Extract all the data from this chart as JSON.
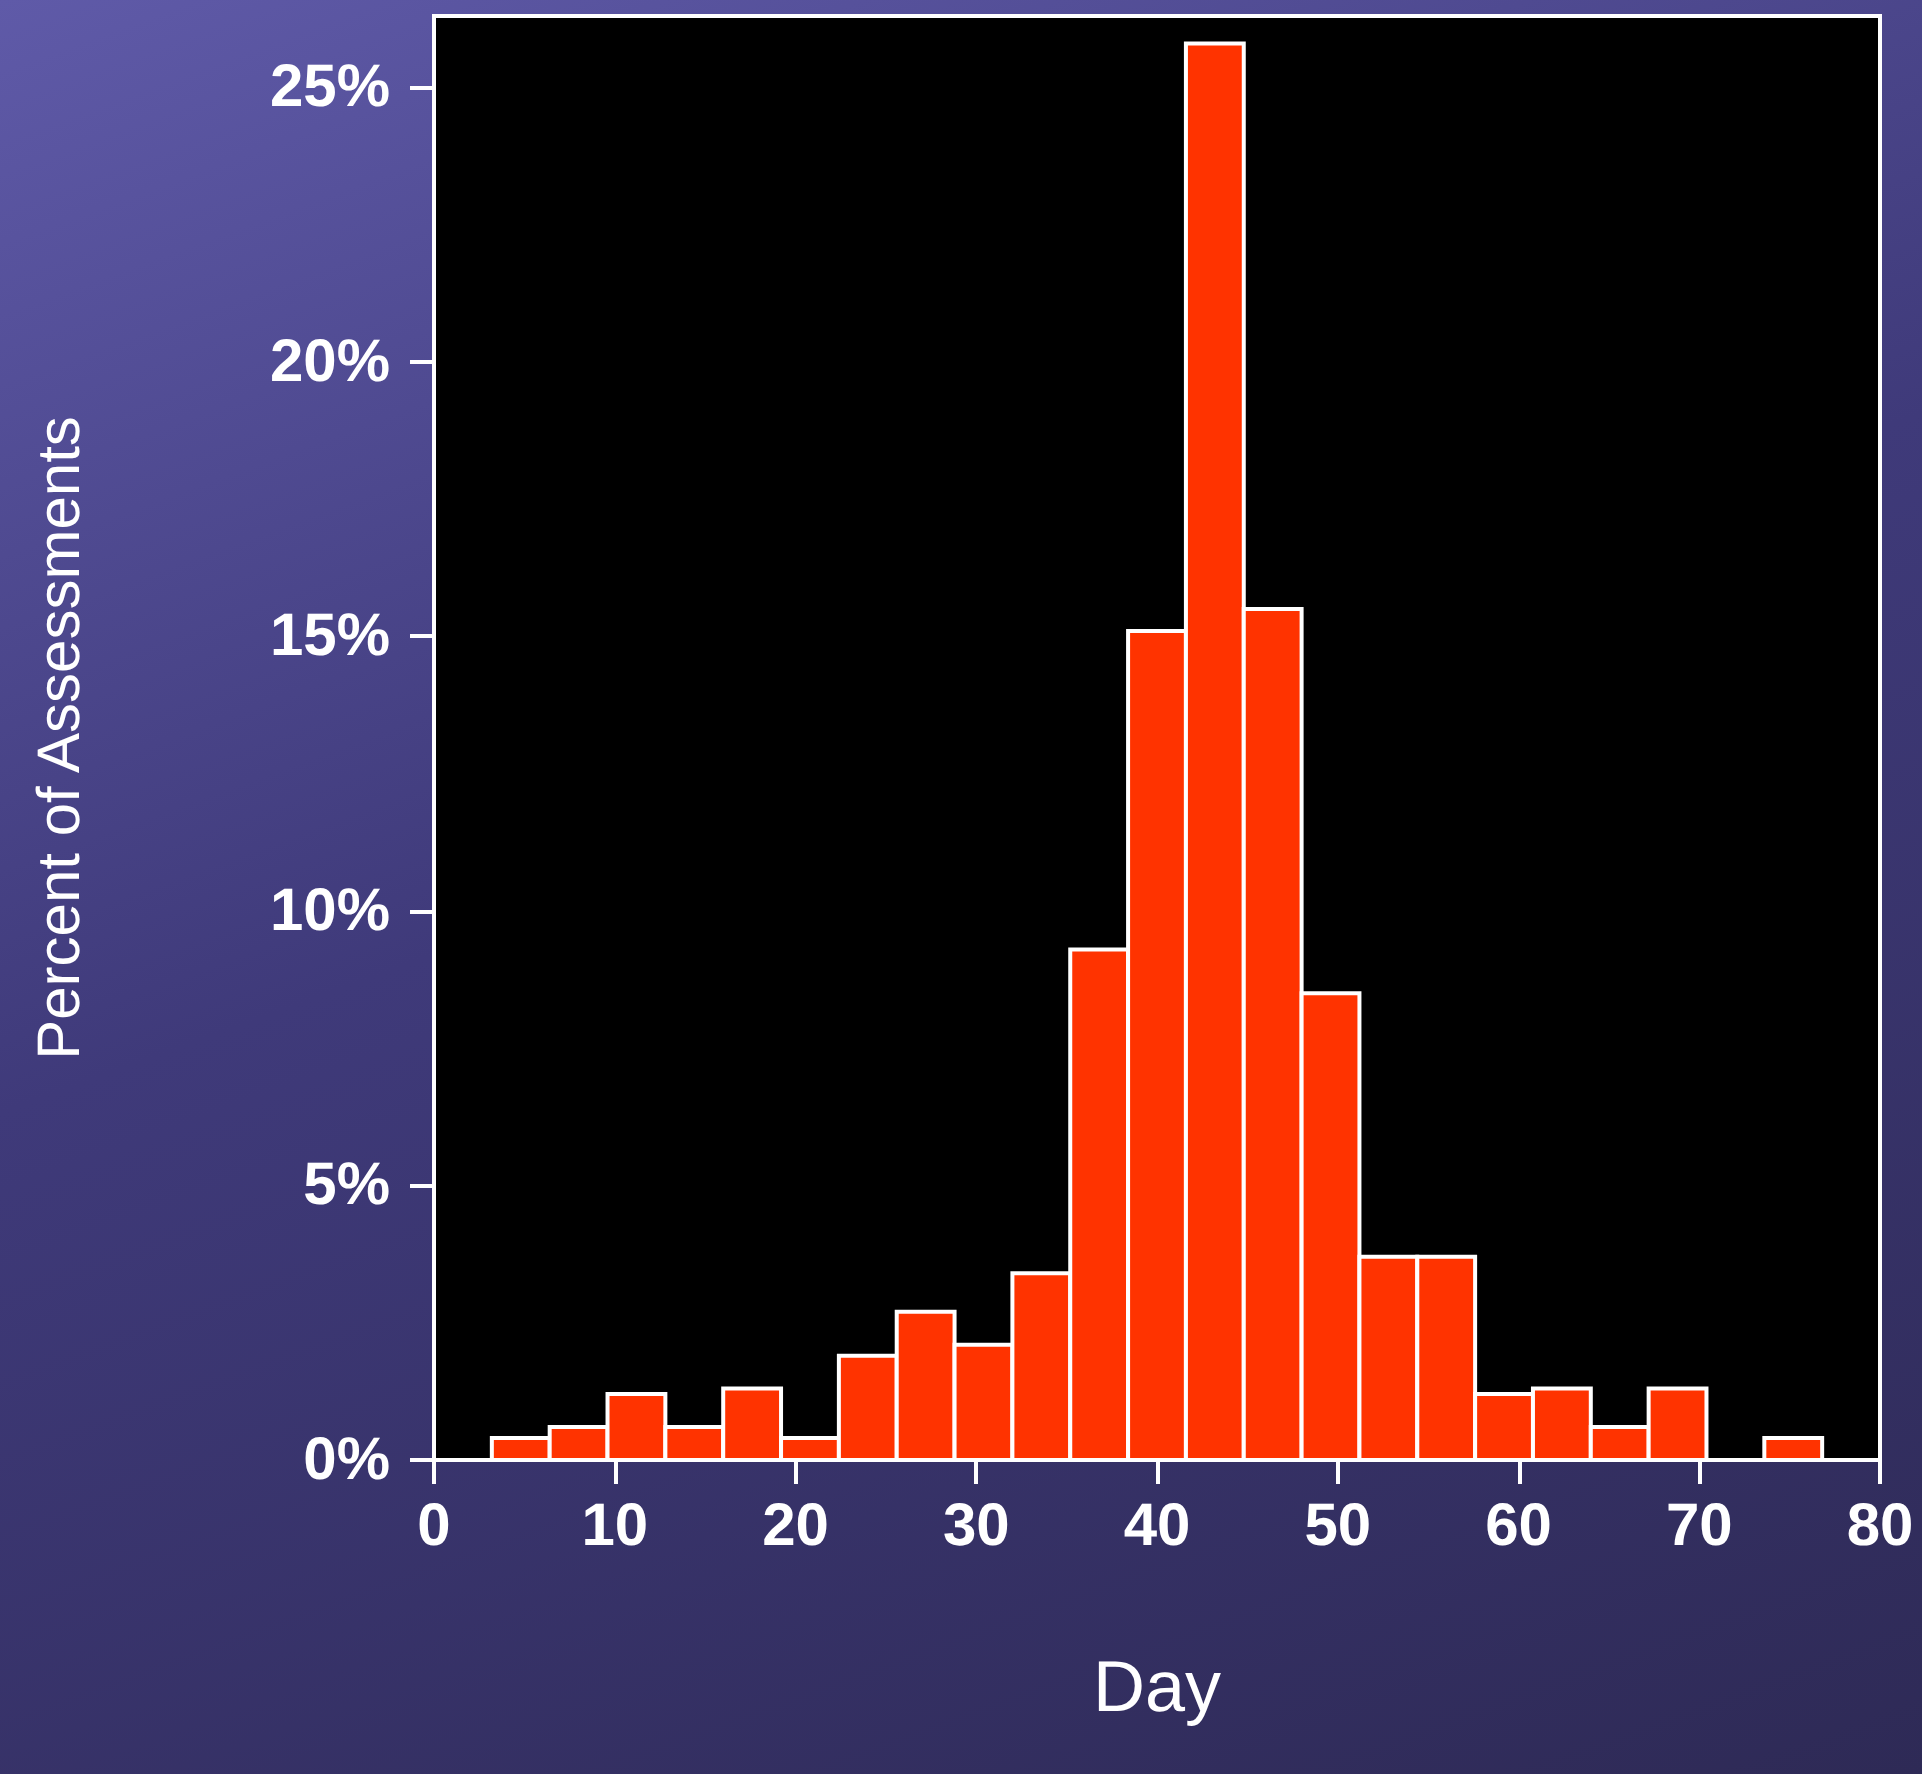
{
  "chart_data": {
    "type": "histogram",
    "xlabel": "Day",
    "ylabel": "Percent of Assessments",
    "bins": [
      3.2,
      6.4,
      9.6,
      12.8,
      16,
      19.2,
      22.4,
      25.6,
      28.8,
      32,
      35.2,
      38.4,
      41.6,
      44.8,
      48,
      51.2,
      54.4,
      57.6,
      60.8,
      64,
      67.2,
      70.4,
      73.6,
      76.8
    ],
    "values": [
      0.4,
      0.6,
      1.2,
      0.6,
      1.3,
      0.4,
      1.9,
      2.7,
      2.1,
      3.4,
      9.3,
      15.1,
      25.8,
      15.5,
      8.5,
      3.7,
      3.7,
      1.2,
      1.3,
      0.6,
      1.3,
      0,
      0.4
    ],
    "color": "#ff3300",
    "xlim": [
      0,
      80
    ],
    "xticks": [
      0,
      10,
      20,
      30,
      40,
      50,
      60,
      70,
      80
    ],
    "ylim": [
      0,
      26.3
    ],
    "yticks": [
      {
        "value": 0,
        "label": "0%"
      },
      {
        "value": 5,
        "label": "5%"
      },
      {
        "value": 10,
        "label": "10%"
      },
      {
        "value": 15,
        "label": "15%"
      },
      {
        "value": 20,
        "label": "20%"
      },
      {
        "value": 25,
        "label": "25%"
      }
    ],
    "grid": false
  }
}
